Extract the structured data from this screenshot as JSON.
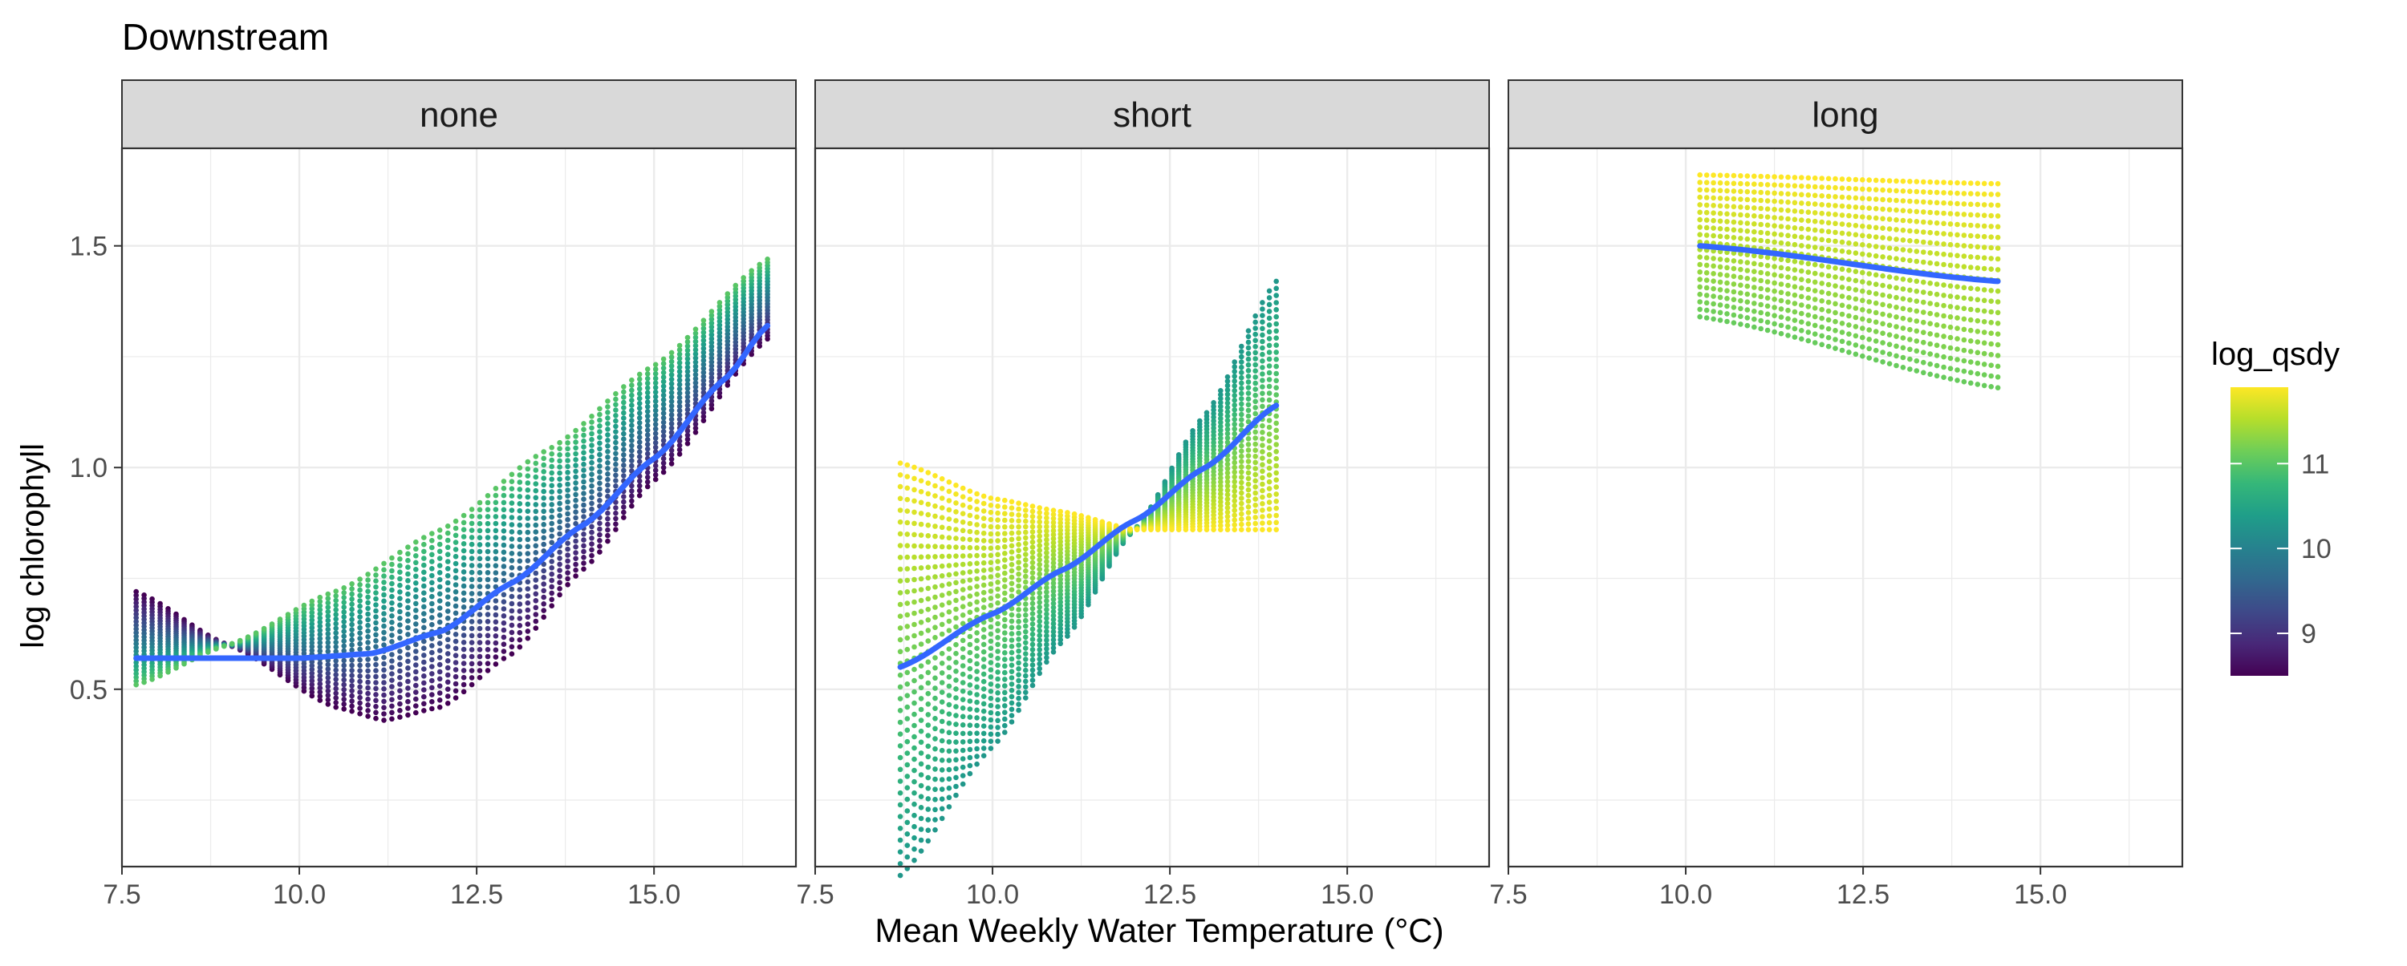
{
  "chart_data": {
    "type": "scatter",
    "title": "Downstream",
    "xlabel": "Mean Weekly Water Temperature (°C)",
    "ylabel": "log chlorophyll",
    "xlim": [
      7.5,
      17.0
    ],
    "ylim": [
      0.1,
      1.72
    ],
    "x_ticks": [
      7.5,
      10.0,
      12.5,
      15.0
    ],
    "y_ticks": [
      0.5,
      1.0,
      1.5
    ],
    "grid": true,
    "legend": {
      "title": "log_qsdy",
      "placement": "right",
      "type": "colorbar",
      "palette": "viridis",
      "range": [
        8.5,
        11.9
      ],
      "ticks": [
        9,
        10,
        11
      ]
    },
    "panels": [
      {
        "name": "none",
        "x_range": [
          7.7,
          16.6
        ],
        "log_qsdy_range": [
          8.5,
          11.0
        ],
        "n_lines": 26,
        "points_per_line": 80,
        "low_edge": [
          [
            7.7,
            0.72
          ],
          [
            9.0,
            0.6
          ],
          [
            10.5,
            0.46
          ],
          [
            11.2,
            0.43
          ],
          [
            12.0,
            0.46
          ],
          [
            13.0,
            0.58
          ],
          [
            14.0,
            0.77
          ],
          [
            15.0,
            0.97
          ],
          [
            16.6,
            1.29
          ]
        ],
        "high_edge": [
          [
            7.7,
            0.51
          ],
          [
            9.0,
            0.6
          ],
          [
            10.5,
            0.72
          ],
          [
            12.0,
            0.86
          ],
          [
            13.5,
            1.04
          ],
          [
            15.0,
            1.23
          ],
          [
            16.6,
            1.47
          ]
        ],
        "trend": [
          [
            7.7,
            0.57
          ],
          [
            9.0,
            0.57
          ],
          [
            10.0,
            0.57
          ],
          [
            11.0,
            0.58
          ],
          [
            12.0,
            0.63
          ],
          [
            13.0,
            0.74
          ],
          [
            14.0,
            0.87
          ],
          [
            15.0,
            1.02
          ],
          [
            16.0,
            1.2
          ],
          [
            16.6,
            1.32
          ]
        ]
      },
      {
        "name": "short",
        "x_range": [
          8.7,
          14.0
        ],
        "log_qsdy_range": [
          10.3,
          11.9
        ],
        "n_lines": 36,
        "points_per_line": 55,
        "low_edge": [
          [
            8.7,
            0.08
          ],
          [
            10.0,
            0.37
          ],
          [
            11.0,
            0.61
          ],
          [
            12.0,
            0.86
          ],
          [
            13.0,
            1.12
          ],
          [
            14.0,
            1.42
          ]
        ],
        "high_edge": [
          [
            8.7,
            1.01
          ],
          [
            10.0,
            0.93
          ],
          [
            11.0,
            0.9
          ],
          [
            12.0,
            0.86
          ],
          [
            13.0,
            0.86
          ],
          [
            14.0,
            0.86
          ]
        ],
        "trend": [
          [
            8.7,
            0.55
          ],
          [
            10.0,
            0.67
          ],
          [
            11.0,
            0.77
          ],
          [
            12.0,
            0.88
          ],
          [
            13.0,
            1.0
          ],
          [
            14.0,
            1.14
          ]
        ]
      },
      {
        "name": "long",
        "x_range": [
          10.2,
          14.4
        ],
        "log_qsdy_range": [
          11.1,
          11.9
        ],
        "n_lines": 20,
        "points_per_line": 45,
        "low_edge": [
          [
            10.2,
            1.34
          ],
          [
            14.4,
            1.18
          ]
        ],
        "high_edge": [
          [
            10.2,
            1.66
          ],
          [
            14.4,
            1.64
          ]
        ],
        "trend": [
          [
            10.2,
            1.5
          ],
          [
            14.4,
            1.42
          ]
        ]
      }
    ]
  }
}
